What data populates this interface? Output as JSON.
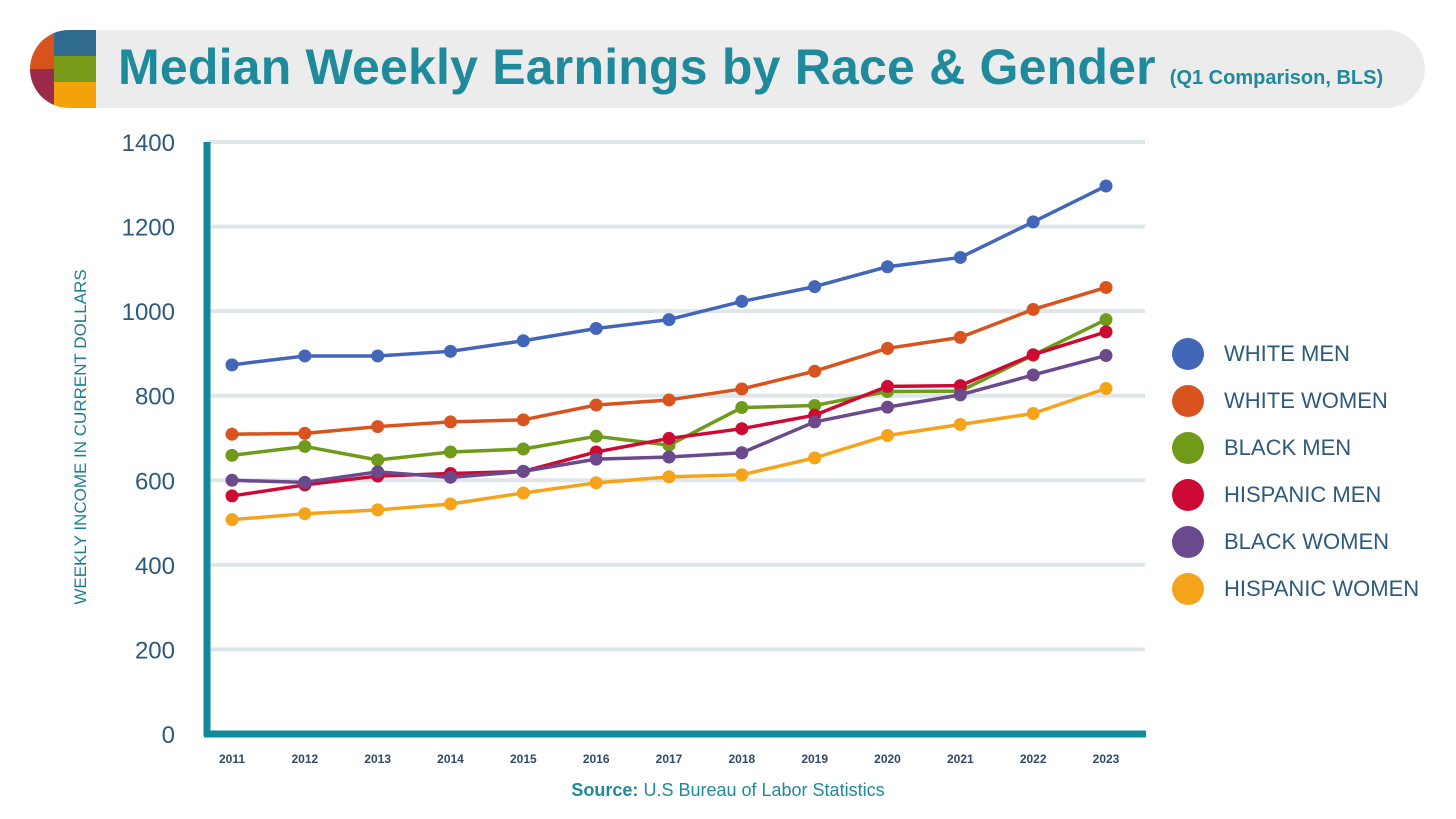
{
  "title": "Median Weekly Earnings by Race & Gender",
  "subtitle": "(Q1 Comparison, BLS)",
  "source_label": "Source:",
  "source_text": "U.S Bureau of Labor Statistics",
  "logo_colors": [
    "#2f6b8e",
    "#d9531e",
    "#7a9a1a",
    "#9c2a4a",
    "#f5a20a"
  ],
  "chart_data": {
    "type": "line",
    "ylabel": "WEEKLY INCOME IN CURRENT DOLLARS",
    "xlabel": "",
    "ylim": [
      0,
      1400
    ],
    "yticks": [
      0,
      200,
      400,
      600,
      800,
      1000,
      1200,
      1400
    ],
    "grid": true,
    "legend_position": "right",
    "x": [
      "2011",
      "2012",
      "2013",
      "2014",
      "2015",
      "2016",
      "2017",
      "2018",
      "2019",
      "2020",
      "2021",
      "2022",
      "2023"
    ],
    "series": [
      {
        "name": "WHITE MEN",
        "color": "#4466b8",
        "values": [
          873,
          894,
          894,
          905,
          930,
          959,
          980,
          1023,
          1058,
          1105,
          1127,
          1211,
          1296
        ]
      },
      {
        "name": "WHITE WOMEN",
        "color": "#d9531e",
        "values": [
          709,
          711,
          727,
          738,
          743,
          778,
          790,
          816,
          858,
          912,
          938,
          1004,
          1056
        ]
      },
      {
        "name": "BLACK MEN",
        "color": "#6f9a1a",
        "values": [
          659,
          680,
          648,
          667,
          674,
          704,
          683,
          772,
          777,
          810,
          811,
          896,
          980
        ]
      },
      {
        "name": "HISPANIC MEN",
        "color": "#cc0a34",
        "values": [
          563,
          589,
          610,
          616,
          621,
          667,
          699,
          722,
          754,
          822,
          824,
          897,
          951
        ]
      },
      {
        "name": "BLACK WOMEN",
        "color": "#6a4a8c",
        "values": [
          600,
          595,
          620,
          607,
          621,
          650,
          655,
          665,
          738,
          773,
          802,
          849,
          895
        ]
      },
      {
        "name": "HISPANIC WOMEN",
        "color": "#f6a31c",
        "values": [
          507,
          521,
          530,
          544,
          570,
          594,
          608,
          613,
          653,
          706,
          732,
          758,
          817
        ]
      }
    ]
  }
}
